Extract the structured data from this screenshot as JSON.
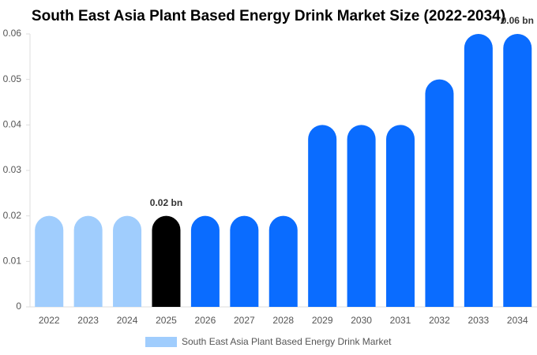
{
  "chart_data": {
    "type": "bar",
    "title": "South East Asia Plant Based Energy Drink Market Size (2022-2034)",
    "categories": [
      "2022",
      "2023",
      "2024",
      "2025",
      "2026",
      "2027",
      "2028",
      "2029",
      "2030",
      "2031",
      "2032",
      "2033",
      "2034"
    ],
    "series": [
      {
        "name": "South East Asia Plant Based Energy Drink Market",
        "color": "#a0cdfd",
        "values": [
          0.02,
          0.02,
          0.02,
          0.02,
          0.02,
          0.02,
          0.02,
          0.04,
          0.04,
          0.04,
          0.05,
          0.06,
          0.06
        ],
        "colors": [
          "#a0cdfd",
          "#a0cdfd",
          "#a0cdfd",
          "#000000",
          "#0a6cff",
          "#0a6cff",
          "#0a6cff",
          "#0a6cff",
          "#0a6cff",
          "#0a6cff",
          "#0a6cff",
          "#0a6cff",
          "#0a6cff"
        ],
        "value_labels": [
          null,
          null,
          null,
          "0.02 bn",
          null,
          null,
          null,
          null,
          null,
          null,
          null,
          null,
          "0.06 bn"
        ]
      }
    ],
    "ylim": [
      0,
      0.06
    ],
    "yticks": [
      0,
      0.01,
      0.02,
      0.03,
      0.04,
      0.05,
      0.06
    ],
    "grid": false
  }
}
